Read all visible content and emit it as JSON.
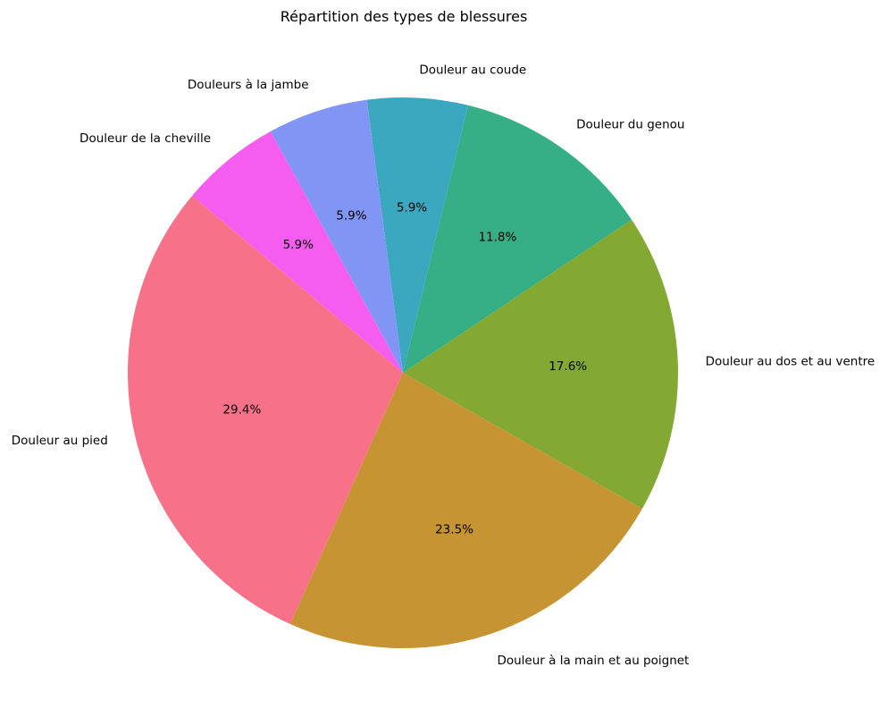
{
  "chart_data": {
    "type": "pie",
    "title": "Répartition des types de blessures",
    "start_angle_deg": 140,
    "direction": "counterclockwise",
    "slices": [
      {
        "label": "Douleur au pied",
        "value": 29.4,
        "pct_label": "29.4%",
        "color": "#f77189"
      },
      {
        "label": "Douleur à la main et au poignet",
        "value": 23.5,
        "pct_label": "23.5%",
        "color": "#c69432"
      },
      {
        "label": "Douleur au dos et au ventre",
        "value": 17.6,
        "pct_label": "17.6%",
        "color": "#83a933"
      },
      {
        "label": "Douleur du genou",
        "value": 11.8,
        "pct_label": "11.8%",
        "color": "#36ae86"
      },
      {
        "label": "Douleur au coude",
        "value": 5.9,
        "pct_label": "5.9%",
        "color": "#3ba8bf"
      },
      {
        "label": "Douleurs à la jambe",
        "value": 5.9,
        "pct_label": "5.9%",
        "color": "#8196f4"
      },
      {
        "label": "Douleur de la cheville",
        "value": 5.9,
        "pct_label": "5.9%",
        "color": "#f45ded"
      }
    ]
  }
}
